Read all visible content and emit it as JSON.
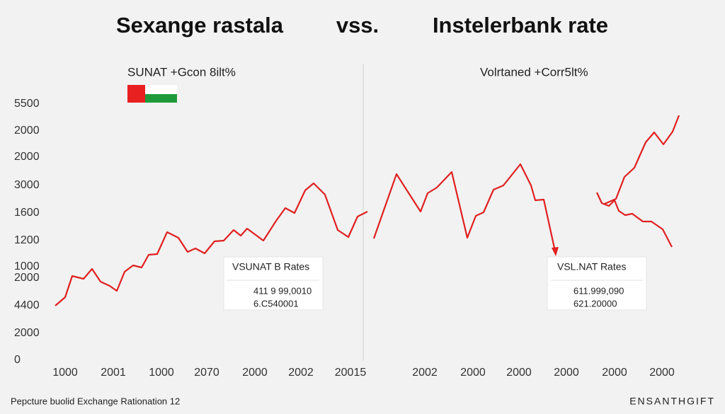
{
  "title": {
    "left": "Sexange rastala",
    "vs": "vss.",
    "right": "Instelerbank rate"
  },
  "legends": [
    "SUNAT +Gcon 8ilt%",
    "Volrtaned +Corr5lt%"
  ],
  "y_axis_labels": [
    "5500",
    "2000",
    "2000",
    "3000",
    "1600",
    "1200",
    "1000",
    "2000",
    "4400",
    "2000",
    "0"
  ],
  "x_axis_labels": [
    "1000",
    "2001",
    "1000",
    "2070",
    "2000",
    "2002",
    "20015",
    "2002",
    "2000",
    "2000",
    "2000",
    "2000",
    "2000"
  ],
  "callouts": [
    {
      "title": "VSUNAT B Rates",
      "line1": "411 9 99,0010",
      "line2": "6.C540001"
    },
    {
      "title": "VSL.NAT Rates",
      "line1": "611.999,090",
      "line2": "621.20000"
    }
  ],
  "footer": {
    "left": "Pepcture buolid Exchange Rationation 12",
    "right": "ENSANTHGIFT"
  }
}
